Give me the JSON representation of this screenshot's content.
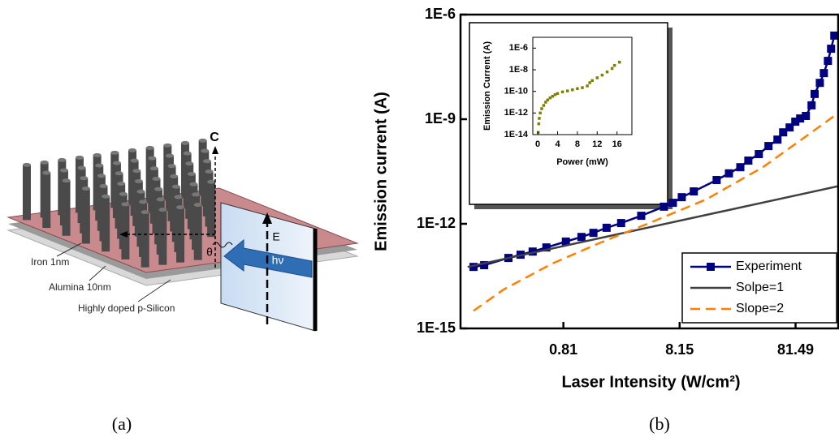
{
  "chart_data": [
    {
      "type": "line",
      "ylabel": "Emission current (A)",
      "xlabel": "Laser Intensity (W/cm²)",
      "xscale": "log",
      "yscale": "log",
      "xlim": [
        0.105,
        190
      ],
      "ylim": [
        1e-15,
        1e-06
      ],
      "xticks": [
        0.81,
        8.15,
        81.49
      ],
      "yticks": [
        {
          "value": 1e-15,
          "label": "1E-15"
        },
        {
          "value": 1e-12,
          "label": "1E-12"
        },
        {
          "value": 1e-09,
          "label": "1E-9"
        },
        {
          "value": 1e-06,
          "label": "1E-6"
        }
      ],
      "legend": "lower right",
      "series": [
        {
          "name": "Experiment",
          "color": "#000080",
          "marker": "square",
          "x": [
            0.136,
            0.168,
            0.272,
            0.346,
            0.44,
            0.578,
            0.851,
            1.16,
            1.47,
            1.91,
            2.55,
            3.8,
            5.97,
            7.13,
            8.51,
            10.8,
            17.0,
            21.7,
            27.2,
            31.9,
            39.3,
            47.6,
            56.9,
            63.7,
            72.4,
            81.1,
            89.3,
            100,
            112,
            119,
            132,
            143,
            155,
            165,
            176
          ],
          "values": [
            5.8e-14,
            6.5e-14,
            1.05e-13,
            1.3e-13,
            1.6e-13,
            2.1e-13,
            3.1e-13,
            4.2e-13,
            5.5e-13,
            7.7e-13,
            1.05e-12,
            1.7e-12,
            3.1e-12,
            4e-12,
            5.8e-12,
            8.5e-12,
            1.8e-11,
            2.8e-11,
            4.2e-11,
            6.5e-11,
            1e-10,
            1.7e-10,
            2.6e-10,
            4.2e-10,
            5.8e-10,
            8.5e-10,
            1.05e-09,
            1.24e-09,
            2.5e-09,
            5.3e-09,
            1.1e-08,
            2.1e-08,
            4.7e-08,
            1.05e-07,
            2.5e-07
          ]
        },
        {
          "name": "Solpe=1",
          "color": "#404040",
          "x": [
            0.121,
            190
          ],
          "values": [
            5.8e-14,
            1.2e-11
          ]
        },
        {
          "name": "Slope=2",
          "color": "#ff8000",
          "linestyle": "dashed",
          "x": [
            0.136,
            0.247,
            0.647,
            1.7,
            4.47,
            13.8,
            42.6,
            112,
            190
          ],
          "values": [
            3.2e-15,
            1.3e-14,
            7.2e-14,
            2.9e-13,
            1.05e-12,
            5e-12,
            4.2e-11,
            4.2e-10,
            1.5e-09
          ]
        }
      ]
    },
    {
      "type": "scatter",
      "ylabel": "Emission Current (A)",
      "xlabel": "Power (mW)",
      "yscale": "log",
      "xlim": [
        -1,
        19
      ],
      "ylim": [
        1e-14,
        1e-05
      ],
      "xticks": [
        0,
        4,
        8,
        12,
        16
      ],
      "yticks": [
        {
          "value": 1e-14,
          "label": "1E-14"
        },
        {
          "value": 1e-12,
          "label": "1E-12"
        },
        {
          "value": 1e-10,
          "label": "1E-10"
        },
        {
          "value": 1e-08,
          "label": "1E-8"
        },
        {
          "value": 1e-06,
          "label": "1E-6"
        }
      ],
      "series": [
        {
          "color": "#808000",
          "marker": "square",
          "x": [
            0.1,
            0.2,
            0.3,
            0.5,
            0.8,
            1.2,
            1.6,
            2,
            2.5,
            3,
            3.5,
            4,
            5,
            6,
            7,
            8,
            9,
            10,
            10.5,
            11,
            12,
            13,
            14,
            15,
            15.5,
            16.5
          ],
          "values": [
            1.6e-14,
            1e-13,
            3.2e-13,
            1e-12,
            2.5e-12,
            5e-12,
            1e-11,
            1.6e-11,
            2.5e-11,
            3.5e-11,
            5e-11,
            6.3e-11,
            8.9e-11,
            1.1e-10,
            1.4e-10,
            1.8e-10,
            2.2e-10,
            3.2e-10,
            6.3e-10,
            1e-09,
            1.8e-09,
            3.2e-09,
            6.3e-09,
            1.3e-08,
            2.5e-08,
            5e-08
          ]
        }
      ]
    }
  ],
  "figure_a": {
    "axis": "C",
    "angle": "θ",
    "field": "E",
    "photon": "hν",
    "layers": [
      "Iron 1nm",
      "Alumina 10nm",
      "Highly doped p-Silicon"
    ]
  },
  "captions": [
    "(a)",
    "(b)"
  ]
}
